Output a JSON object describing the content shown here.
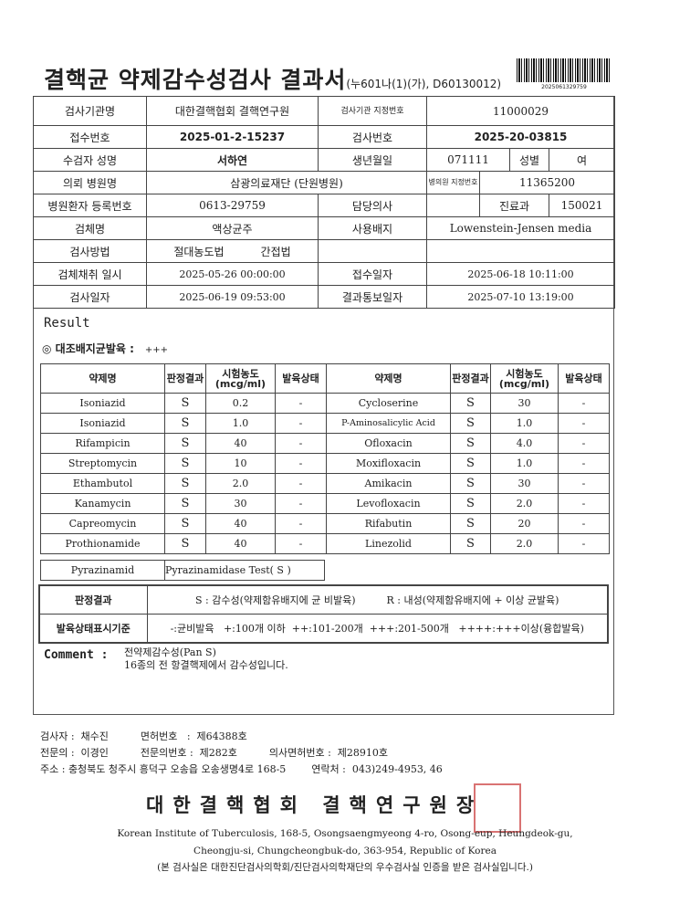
{
  "header": {
    "title": "결핵균 약제감수성검사 결과서",
    "form_code": "(누601나(1)(가), D60130012)",
    "barcode_number": "2025061329759"
  },
  "info": {
    "lab_name_label": "검사기관명",
    "lab_name": "대한결핵협회 결핵연구원",
    "lab_id_label": "검사기관 지정번호",
    "lab_id": "11000029",
    "receipt_no_label": "접수번호",
    "receipt_no": "2025-01-2-15237",
    "test_no_label": "검사번호",
    "test_no": "2025-20-03815",
    "patient_name_label": "수검자 성명",
    "patient_name": "서하연",
    "birth_label": "생년월일",
    "birth": "071111",
    "sex_label": "성별",
    "sex": "여",
    "hospital_label": "의뢰 병원명",
    "hospital": "삼광의료재단 (단원병원)",
    "hospital_id_label": "병의원 지정번호",
    "hospital_id": "11365200",
    "reg_no_label": "병원환자 등록번호",
    "reg_no": "0613-29759",
    "doctor_label": "담당의사",
    "doctor": "",
    "dept_label": "진료과",
    "dept": "150021",
    "specimen_label": "검체명",
    "specimen": "액상균주",
    "medium_label": "사용배지",
    "medium": "Lowenstein-Jensen media",
    "method_label": "검사방법",
    "method_1": "절대농도법",
    "method_2": "간접법",
    "collect_label": "검체채취 일시",
    "collect": "2025-05-26 00:00:00",
    "received_label": "접수일자",
    "received": "2025-06-18 10:11:00",
    "test_date_label": "검사일자",
    "test_date": "2025-06-19 09:53:00",
    "report_label": "결과통보일자",
    "report": "2025-07-10 13:19:00"
  },
  "result": {
    "heading": "Result",
    "control_label": "◎ 대조배지균발육 :",
    "control_value": "+++",
    "columns": [
      "약제명",
      "판정결과",
      "시험농도(mcg/ml)",
      "발육상태"
    ],
    "rows": [
      [
        "Isoniazid",
        "S",
        "0.2",
        "-",
        "Cycloserine",
        "S",
        "30",
        "-"
      ],
      [
        "Isoniazid",
        "S",
        "1.0",
        "-",
        "P-Aminosalicylic Acid",
        "S",
        "1.0",
        "-"
      ],
      [
        "Rifampicin",
        "S",
        "40",
        "-",
        "Ofloxacin",
        "S",
        "4.0",
        "-"
      ],
      [
        "Streptomycin",
        "S",
        "10",
        "-",
        "Moxifloxacin",
        "S",
        "1.0",
        "-"
      ],
      [
        "Ethambutol",
        "S",
        "2.0",
        "-",
        "Amikacin",
        "S",
        "30",
        "-"
      ],
      [
        "Kanamycin",
        "S",
        "30",
        "-",
        "Levofloxacin",
        "S",
        "2.0",
        "-"
      ],
      [
        "Capreomycin",
        "S",
        "40",
        "-",
        "Rifabutin",
        "S",
        "20",
        "-"
      ],
      [
        "Prothionamide",
        "S",
        "40",
        "-",
        "Linezolid",
        "S",
        "2.0",
        "-"
      ]
    ],
    "pza_label": "Pyrazinamid",
    "pza_value": "Pyrazinamidase Test( S  )"
  },
  "legend": {
    "judge_label": "판정결과",
    "judge_s": "S : 감수성(약제함유배지에 균 비발육)",
    "judge_r": "R : 내성(약제함유배지에 + 이상 균발육)",
    "growth_label": "발육상태표시기준",
    "growth_text": "-:균비발육   +:100개 이하  ++:101-200개  +++:201-500개   ++++:+++이상(융합발육)"
  },
  "comment": {
    "label": "Comment :",
    "line1": "전약제감수성(Pan S)",
    "line2": "16종의 전 항결핵제에서 감수성입니다."
  },
  "footer": {
    "line1": "검사자 :  채수진          면허번호   :  제64388호",
    "line2": "전문의 :  이경인          전문의번호 :  제282호          의사면허번호 :  제28910호",
    "line3": "주소 : 충청북도 청주시 흥덕구 오송읍 오송생명4로 168-5        연락처 :  043)249-4953, 46",
    "institution": "대한결핵협회 결핵연구원장",
    "stamp_text": "대한결핵협회결핵연구원장",
    "eng1": "Korean Institute of Tuberculosis, 168-5, Osongsaengmyeong 4-ro, Osong-eup, Heungdeok-gu,",
    "eng2": "Cheongju-si, Chungcheongbuk-do, 363-954, Republic of Korea",
    "cert": "(본 검사실은 대한진단검사의학회/진단검사의학재단의 우수검사실 인증을 받은 검사실입니다.)"
  }
}
